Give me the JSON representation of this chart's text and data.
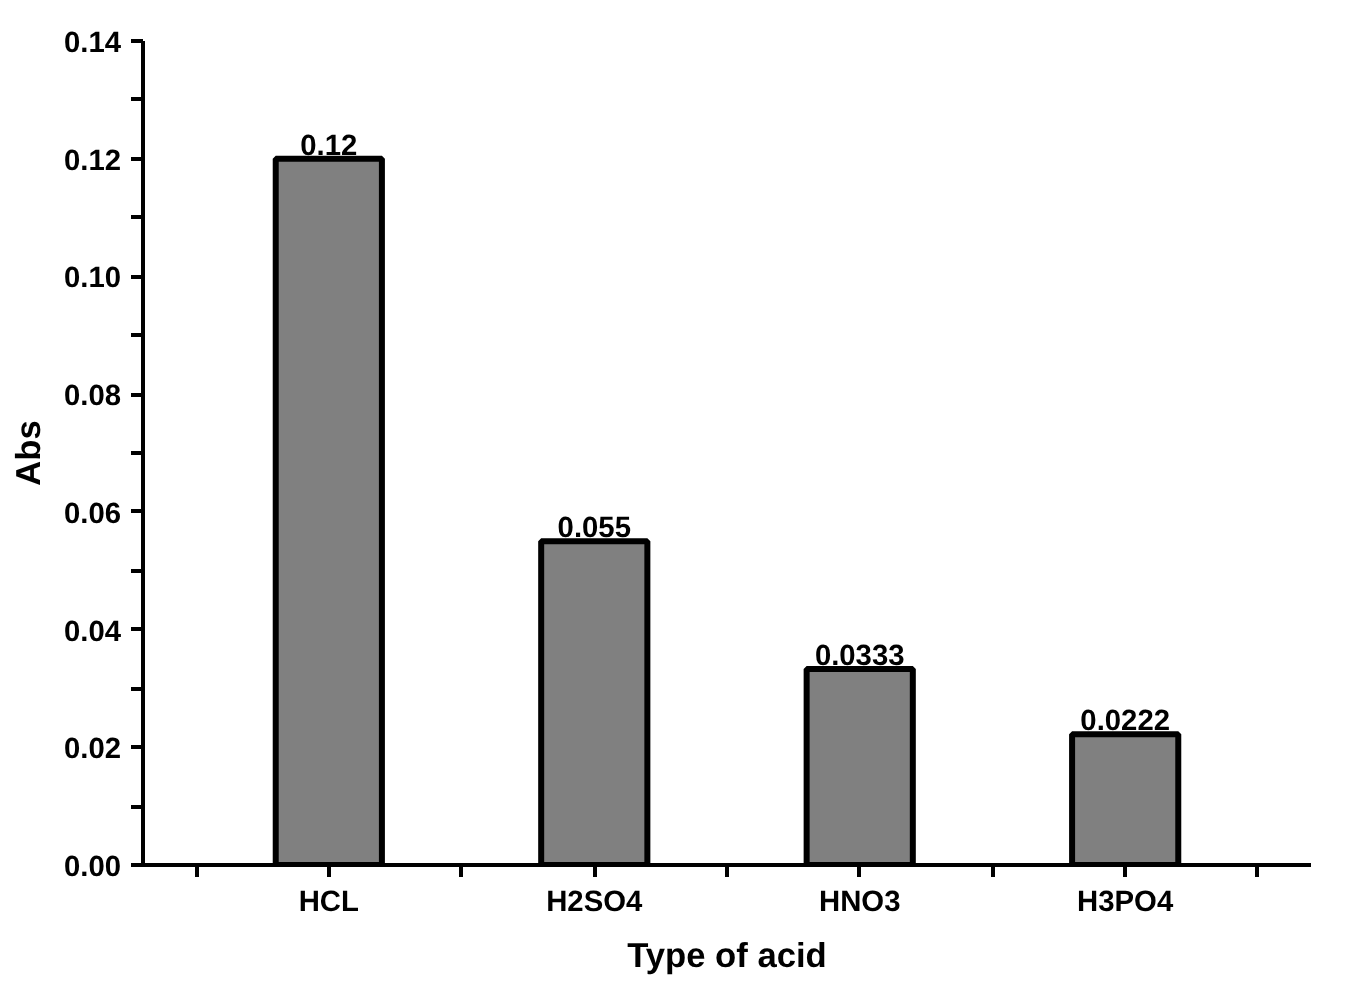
{
  "chart_data": {
    "type": "bar",
    "categories": [
      "HCL",
      "H2SO4",
      "HNO3",
      "H3PO4"
    ],
    "values": [
      0.12,
      0.055,
      0.0333,
      0.0222
    ],
    "color": "#808080",
    "xlabel": "Type of acid",
    "ylabel": "Abs",
    "ylim": [
      0,
      0.14
    ],
    "yticks": [
      {
        "value": 0,
        "label": "0.00"
      },
      {
        "value": 0.01,
        "label": null
      },
      {
        "value": 0.02,
        "label": "0.02"
      },
      {
        "value": 0.03,
        "label": null
      },
      {
        "value": 0.04,
        "label": "0.04"
      },
      {
        "value": 0.05,
        "label": null
      },
      {
        "value": 0.06,
        "label": "0.06"
      },
      {
        "value": 0.07,
        "label": null
      },
      {
        "value": 0.08,
        "label": "0.08"
      },
      {
        "value": 0.09,
        "label": null
      },
      {
        "value": 0.1,
        "label": "0.10"
      },
      {
        "value": 0.11,
        "label": null
      },
      {
        "value": 0.12,
        "label": "0.12"
      },
      {
        "value": 0.13,
        "label": null
      },
      {
        "value": 0.14,
        "label": "0.14"
      }
    ],
    "data_labels": true,
    "grid": false
  }
}
